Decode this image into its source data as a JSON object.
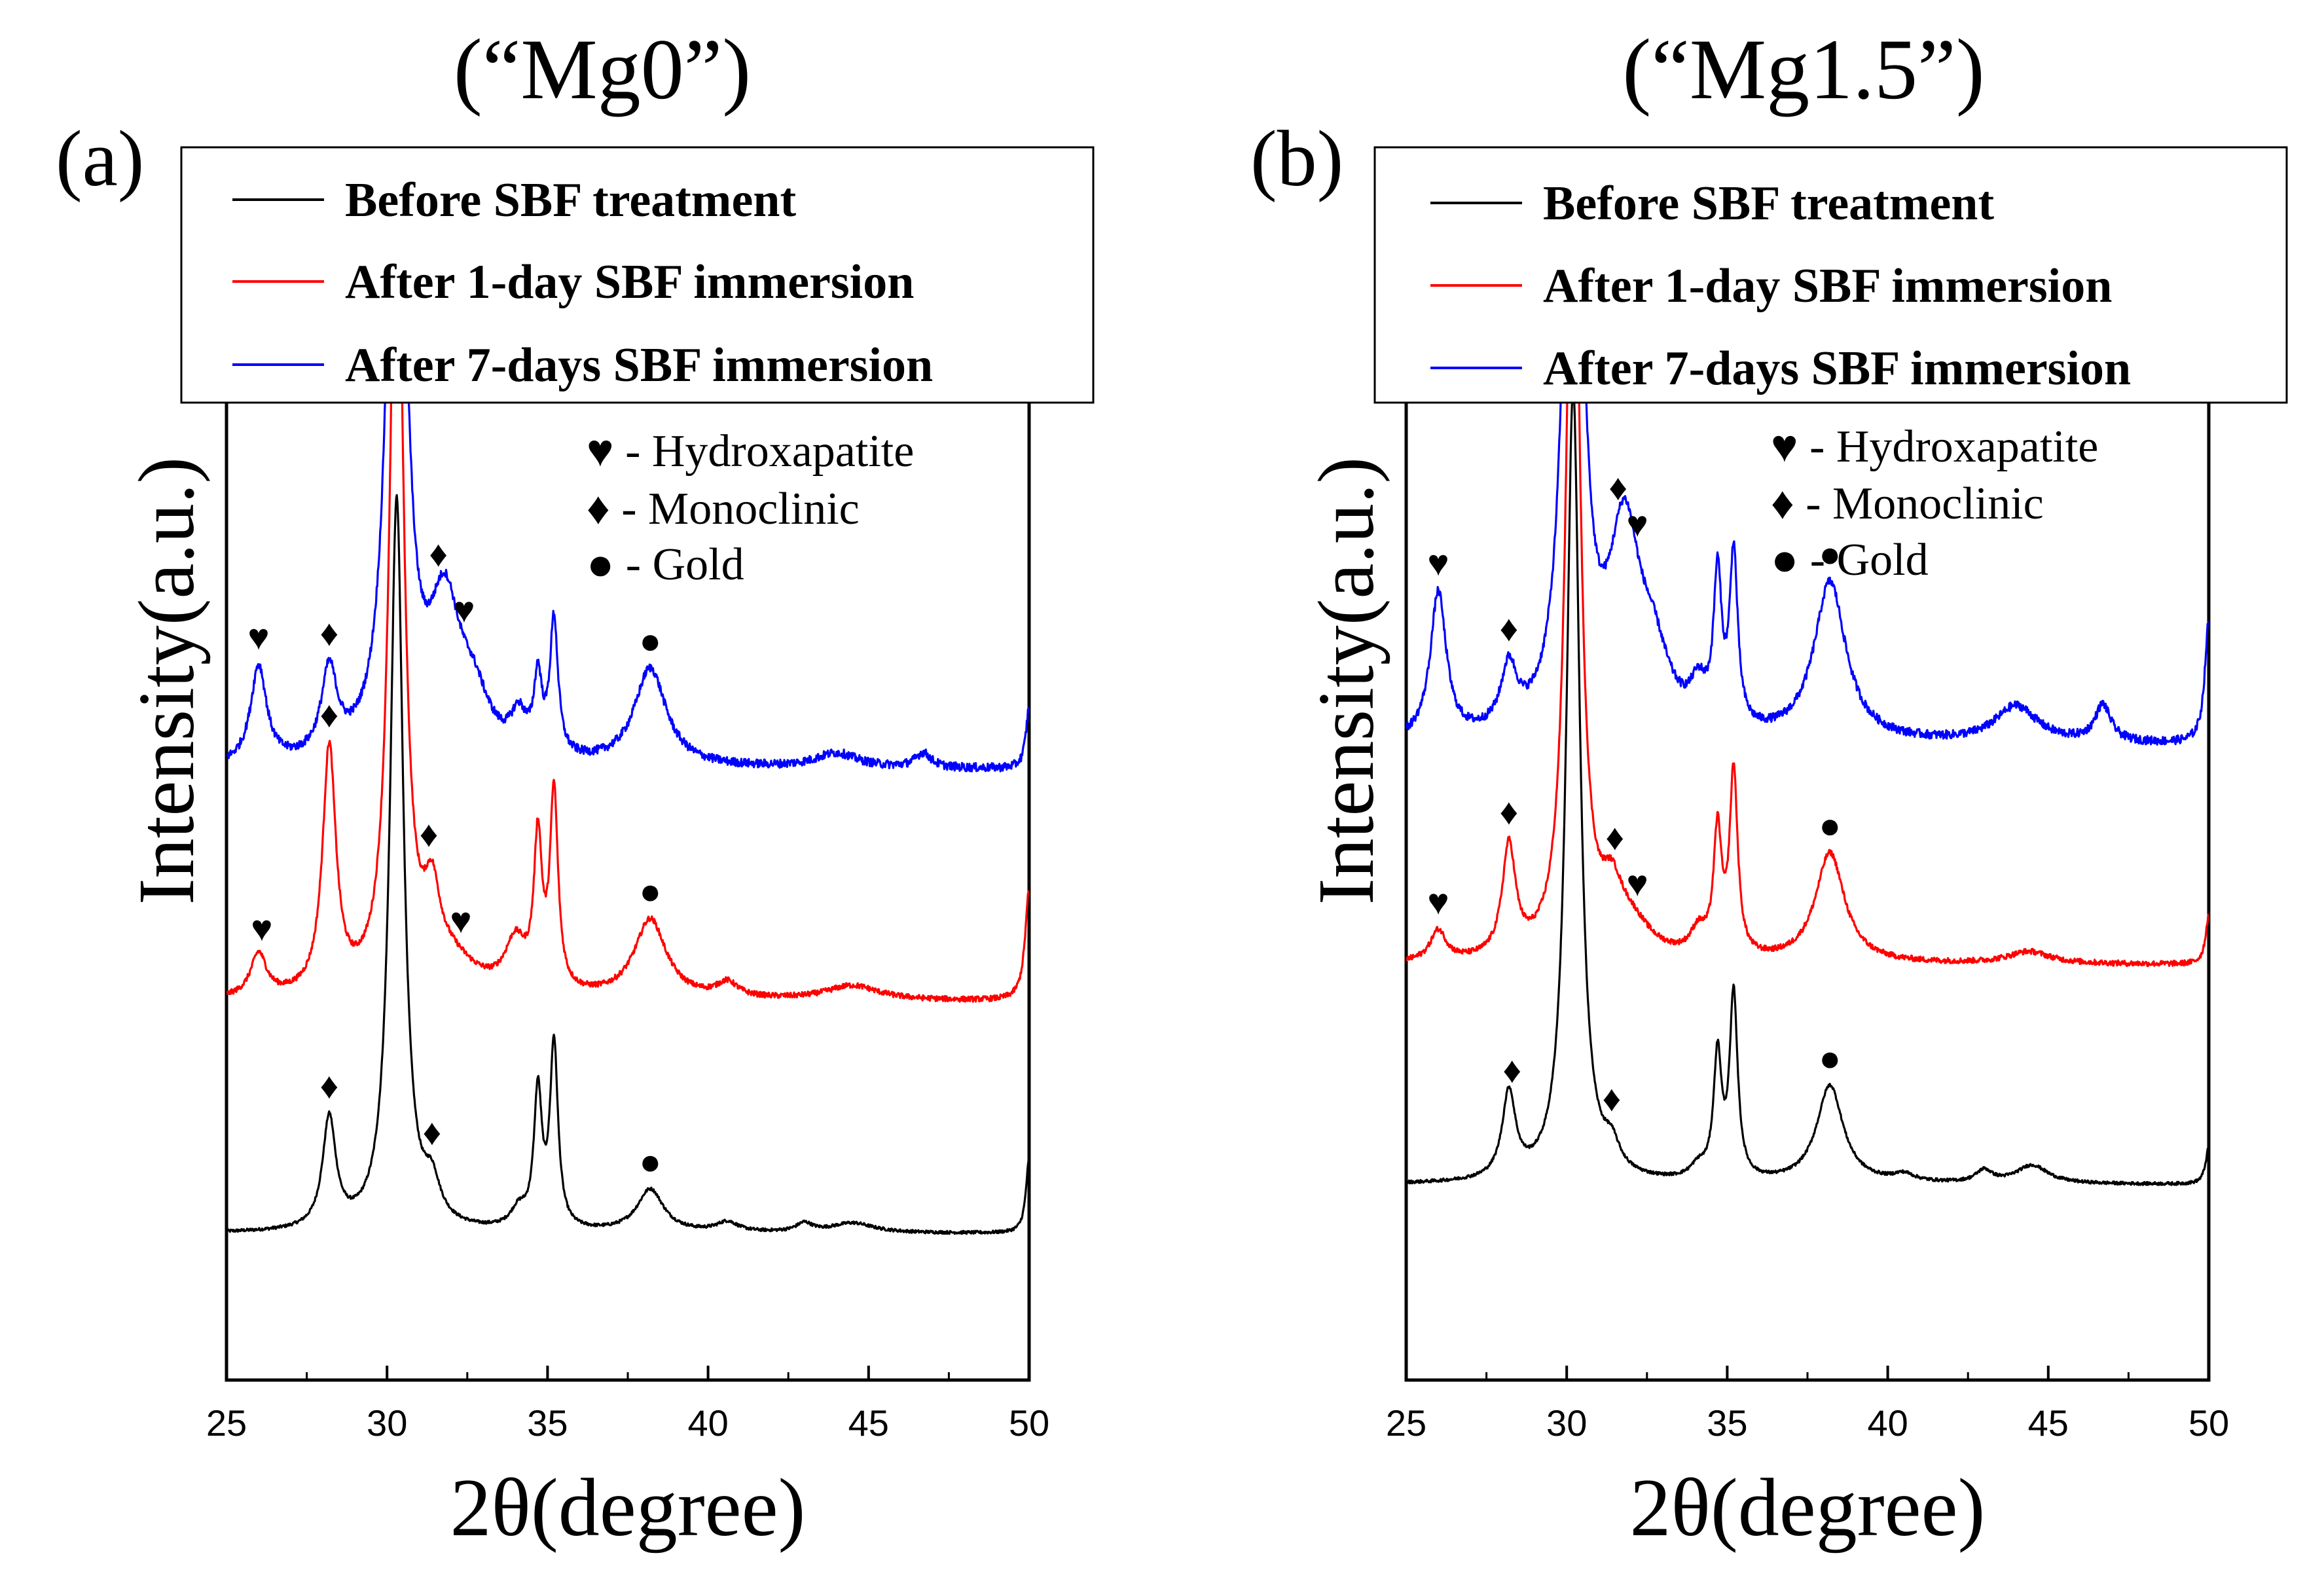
{
  "chart_data": [
    {
      "type": "line",
      "panel_label": "(a)",
      "title": "(“Mg0”)",
      "xlabel": "2θ(degree)",
      "ylabel": "Intensity(a.u.)",
      "xlim": [
        25,
        50
      ],
      "x_ticks": [
        "25",
        "30",
        "35",
        "40",
        "45",
        "50"
      ],
      "ylim": [
        0,
        100
      ],
      "legend": [
        "Before SBF treatment",
        "After 1-day SBF immersion",
        "After 7-days SBF immersion"
      ],
      "annotations": [
        "♥ - Hydroxapatite",
        "♦ - Monoclinic",
        "● - Gold"
      ],
      "series": [
        {
          "name": "Before SBF treatment",
          "color": "#000000",
          "baseline": 12,
          "peaks": [
            [
              28.2,
              9,
              0.25
            ],
            [
              30.3,
              60,
              0.25
            ],
            [
              31.4,
              3,
              0.3
            ],
            [
              34.1,
              1.5,
              0.3
            ],
            [
              34.7,
              11,
              0.15
            ],
            [
              35.2,
              15,
              0.15
            ],
            [
              38.2,
              3.5,
              0.5
            ],
            [
              40.6,
              0.8,
              0.4
            ],
            [
              43.0,
              0.7,
              0.3
            ],
            [
              44.5,
              0.8,
              0.8
            ],
            [
              50.0,
              6,
              0.12
            ]
          ],
          "markers": [
            [
              "♦",
              28.2
            ],
            [
              "♦",
              31.4
            ],
            [
              "●",
              38.2
            ]
          ]
        },
        {
          "name": "After 1-day SBF immersion",
          "color": "#ff0000",
          "baseline": 31,
          "peaks": [
            [
              26.0,
              3.5,
              0.3
            ],
            [
              28.2,
              20,
              0.25
            ],
            [
              30.3,
              70,
              0.25
            ],
            [
              31.4,
              6,
              0.3
            ],
            [
              32.0,
              2.5,
              1.0
            ],
            [
              34.0,
              4,
              0.4
            ],
            [
              34.7,
              12,
              0.15
            ],
            [
              35.2,
              16,
              0.15
            ],
            [
              38.2,
              6.5,
              0.6
            ],
            [
              40.6,
              1.2,
              0.4
            ],
            [
              44.5,
              1.2,
              1.0
            ],
            [
              50.0,
              9,
              0.15
            ]
          ],
          "markers": [
            [
              "♥",
              26.1
            ],
            [
              "♦",
              28.2
            ],
            [
              "♦",
              31.3
            ],
            [
              "♥",
              32.3
            ],
            [
              "●",
              38.2
            ]
          ]
        },
        {
          "name": "After 7-days SBF immersion",
          "color": "#0000ff",
          "baseline": 50,
          "peaks": [
            [
              26.0,
              8,
              0.3
            ],
            [
              28.2,
              7,
              0.3
            ],
            [
              30.3,
              70,
              0.3
            ],
            [
              31.8,
              12,
              0.6
            ],
            [
              32.7,
              4,
              0.6
            ],
            [
              34.1,
              3,
              0.3
            ],
            [
              34.7,
              6,
              0.15
            ],
            [
              35.2,
              11,
              0.15
            ],
            [
              38.2,
              8,
              0.6
            ],
            [
              44.0,
              1.2,
              0.8
            ],
            [
              46.7,
              1.2,
              0.3
            ],
            [
              50.0,
              5,
              0.12
            ]
          ],
          "markers": [
            [
              "♥",
              26.0
            ],
            [
              "♦",
              28.2
            ],
            [
              "♦",
              31.6
            ],
            [
              "♥",
              32.4
            ],
            [
              "●",
              38.2
            ]
          ]
        }
      ]
    },
    {
      "type": "line",
      "panel_label": "(b)",
      "title": "(“Mg1.5”)",
      "xlabel": "2θ(degree)",
      "ylabel": "Intensity(a.u.)",
      "xlim": [
        25,
        50
      ],
      "x_ticks": [
        "25",
        "30",
        "35",
        "40",
        "45",
        "50"
      ],
      "ylim": [
        0,
        100
      ],
      "legend": [
        "Before SBF treatment",
        "After 1-day SBF immersion",
        "After 7-days SBF immersion"
      ],
      "annotations": [
        "♥ - Hydroxapatite",
        "♦ - Monoclinic",
        "● - Gold"
      ],
      "series": [
        {
          "name": "Before SBF treatment",
          "color": "#000000",
          "baseline": 16,
          "peaks": [
            [
              28.2,
              7,
              0.25
            ],
            [
              30.2,
              65,
              0.25
            ],
            [
              31.4,
              2,
              0.3
            ],
            [
              34.1,
              1.0,
              0.3
            ],
            [
              34.7,
              10,
              0.15
            ],
            [
              35.2,
              15,
              0.15
            ],
            [
              38.2,
              8,
              0.5
            ],
            [
              40.5,
              0.6,
              0.4
            ],
            [
              43.0,
              1.0,
              0.3
            ],
            [
              44.5,
              1.5,
              0.6
            ],
            [
              50.0,
              3,
              0.12
            ]
          ],
          "markers": [
            [
              "♦",
              28.3
            ],
            [
              "♦",
              31.4
            ],
            [
              "●",
              38.2
            ]
          ]
        },
        {
          "name": "After 1-day SBF immersion",
          "color": "#ff0000",
          "baseline": 34,
          "peaks": [
            [
              26.0,
              2.5,
              0.3
            ],
            [
              28.2,
              9,
              0.25
            ],
            [
              30.2,
              70,
              0.25
            ],
            [
              31.4,
              4,
              0.4
            ],
            [
              32.0,
              2.5,
              0.8
            ],
            [
              34.1,
              2,
              0.3
            ],
            [
              34.7,
              10,
              0.15
            ],
            [
              35.2,
              15,
              0.15
            ],
            [
              38.2,
              9,
              0.55
            ],
            [
              44.4,
              1.0,
              0.8
            ],
            [
              50.0,
              4,
              0.12
            ]
          ],
          "markers": [
            [
              "♥",
              26.0
            ],
            [
              "♦",
              28.2
            ],
            [
              "♦",
              31.5
            ],
            [
              "♥",
              32.2
            ],
            [
              "●",
              38.2
            ]
          ]
        },
        {
          "name": "After 7-days SBF immersion",
          "color": "#0000ff",
          "baseline": 52,
          "peaks": [
            [
              26.0,
              12,
              0.3
            ],
            [
              28.2,
              5,
              0.3
            ],
            [
              30.2,
              70,
              0.3
            ],
            [
              31.8,
              16,
              0.6
            ],
            [
              32.7,
              5,
              0.6
            ],
            [
              34.1,
              3,
              0.3
            ],
            [
              34.7,
              12,
              0.15
            ],
            [
              35.2,
              14,
              0.15
            ],
            [
              38.2,
              13,
              0.6
            ],
            [
              44.0,
              3,
              0.8
            ],
            [
              46.7,
              3,
              0.3
            ],
            [
              50.0,
              10,
              0.15
            ]
          ],
          "markers": [
            [
              "♥",
              26.0
            ],
            [
              "♦",
              28.2
            ],
            [
              "♦",
              31.6
            ],
            [
              "♥",
              32.2
            ],
            [
              "●",
              38.2
            ]
          ]
        }
      ]
    }
  ]
}
